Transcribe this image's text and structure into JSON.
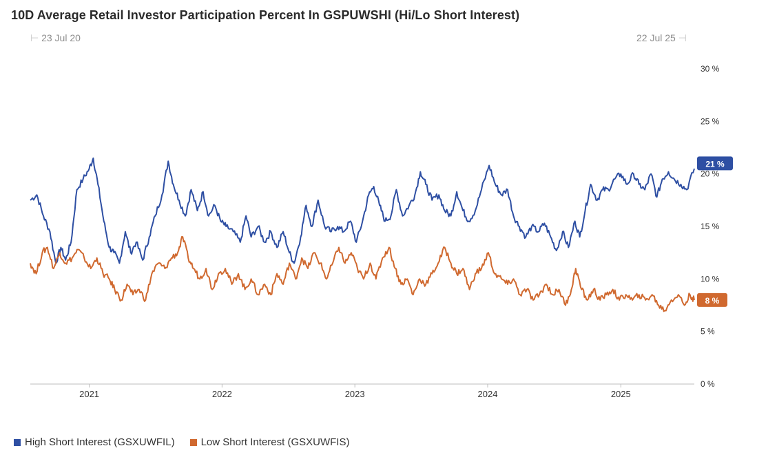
{
  "header": {
    "title": "10D Average Retail Investor Participation Percent In GSPUWSHI (Hi/Lo Short Interest)",
    "range_start": "23 Jul 20",
    "range_end": "22 Jul 25"
  },
  "colors": {
    "high": "#2e4fa3",
    "low": "#d0692f",
    "axis": "#bdbdbd",
    "text": "#333333"
  },
  "chart_data": {
    "type": "line",
    "title": "10D Average Retail Investor Participation Percent In GSPUWSHI (Hi/Lo Short Interest)",
    "x_range": [
      "2020-07-23",
      "2025-07-22"
    ],
    "ylim": [
      0,
      30
    ],
    "y_ticks": [
      0,
      5,
      10,
      15,
      20,
      25,
      30
    ],
    "y_tick_labels": [
      "0 %",
      "5 %",
      "10 %",
      "15 %",
      "20 %",
      "25 %",
      "30 %"
    ],
    "x_ticks": [
      "2021",
      "2022",
      "2023",
      "2024",
      "2025"
    ],
    "grid": false,
    "legend": "bottom-left",
    "series": [
      {
        "name": "High Short Interest (GSXUWFIL)",
        "last_value_label": "21 %",
        "points": [
          [
            "2020-07-23",
            17.5
          ],
          [
            "2020-08-10",
            18.0
          ],
          [
            "2020-08-28",
            16.0
          ],
          [
            "2020-09-15",
            14.5
          ],
          [
            "2020-10-01",
            11.5
          ],
          [
            "2020-10-15",
            13.0
          ],
          [
            "2020-10-28",
            11.8
          ],
          [
            "2020-11-12",
            13.5
          ],
          [
            "2020-11-28",
            18.5
          ],
          [
            "2020-12-15",
            19.5
          ],
          [
            "2021-01-01",
            20.5
          ],
          [
            "2021-01-12",
            21.5
          ],
          [
            "2021-01-25",
            19.0
          ],
          [
            "2021-02-10",
            15.5
          ],
          [
            "2021-02-25",
            13.0
          ],
          [
            "2021-03-10",
            12.5
          ],
          [
            "2021-03-25",
            11.5
          ],
          [
            "2021-04-10",
            14.5
          ],
          [
            "2021-04-25",
            12.5
          ],
          [
            "2021-05-10",
            13.5
          ],
          [
            "2021-05-28",
            11.8
          ],
          [
            "2021-06-15",
            14.0
          ],
          [
            "2021-07-01",
            16.0
          ],
          [
            "2021-07-20",
            18.0
          ],
          [
            "2021-08-06",
            21.2
          ],
          [
            "2021-08-20",
            19.0
          ],
          [
            "2021-09-05",
            17.5
          ],
          [
            "2021-09-22",
            16.0
          ],
          [
            "2021-10-08",
            18.5
          ],
          [
            "2021-10-25",
            16.5
          ],
          [
            "2021-11-10",
            18.3
          ],
          [
            "2021-11-25",
            16.0
          ],
          [
            "2021-12-12",
            17.0
          ],
          [
            "2021-12-28",
            15.5
          ],
          [
            "2022-01-12",
            15.0
          ],
          [
            "2022-02-01",
            14.5
          ],
          [
            "2022-02-20",
            13.5
          ],
          [
            "2022-03-08",
            16.0
          ],
          [
            "2022-03-22",
            14.0
          ],
          [
            "2022-04-10",
            15.0
          ],
          [
            "2022-04-28",
            13.5
          ],
          [
            "2022-05-15",
            14.5
          ],
          [
            "2022-06-01",
            13.0
          ],
          [
            "2022-06-18",
            14.5
          ],
          [
            "2022-07-05",
            12.5
          ],
          [
            "2022-07-18",
            11.5
          ],
          [
            "2022-08-05",
            14.0
          ],
          [
            "2022-08-20",
            17.0
          ],
          [
            "2022-09-05",
            15.0
          ],
          [
            "2022-09-22",
            17.5
          ],
          [
            "2022-10-10",
            15.0
          ],
          [
            "2022-10-28",
            14.5
          ],
          [
            "2022-11-15",
            15.0
          ],
          [
            "2022-12-01",
            14.5
          ],
          [
            "2022-12-20",
            15.5
          ],
          [
            "2023-01-05",
            13.5
          ],
          [
            "2023-01-22",
            15.5
          ],
          [
            "2023-02-08",
            18.0
          ],
          [
            "2023-02-22",
            18.8
          ],
          [
            "2023-03-10",
            17.0
          ],
          [
            "2023-03-25",
            15.5
          ],
          [
            "2023-04-10",
            16.0
          ],
          [
            "2023-04-25",
            18.5
          ],
          [
            "2023-05-12",
            16.0
          ],
          [
            "2023-05-30",
            17.0
          ],
          [
            "2023-06-15",
            18.0
          ],
          [
            "2023-06-30",
            20.2
          ],
          [
            "2023-07-15",
            19.0
          ],
          [
            "2023-08-01",
            17.5
          ],
          [
            "2023-08-20",
            18.0
          ],
          [
            "2023-09-05",
            16.5
          ],
          [
            "2023-09-22",
            16.0
          ],
          [
            "2023-10-08",
            18.3
          ],
          [
            "2023-10-25",
            16.5
          ],
          [
            "2023-11-10",
            15.5
          ],
          [
            "2023-11-28",
            16.5
          ],
          [
            "2023-12-15",
            18.5
          ],
          [
            "2024-01-05",
            20.8
          ],
          [
            "2024-01-22",
            19.0
          ],
          [
            "2024-02-08",
            18.0
          ],
          [
            "2024-02-25",
            18.5
          ],
          [
            "2024-03-12",
            16.0
          ],
          [
            "2024-03-28",
            15.0
          ],
          [
            "2024-04-15",
            14.0
          ],
          [
            "2024-05-01",
            15.0
          ],
          [
            "2024-05-20",
            14.5
          ],
          [
            "2024-06-05",
            15.3
          ],
          [
            "2024-06-22",
            14.0
          ],
          [
            "2024-07-08",
            12.7
          ],
          [
            "2024-07-25",
            14.5
          ],
          [
            "2024-08-10",
            13.0
          ],
          [
            "2024-08-28",
            15.5
          ],
          [
            "2024-09-10",
            14.0
          ],
          [
            "2024-09-25",
            16.5
          ],
          [
            "2024-10-10",
            19.0
          ],
          [
            "2024-10-28",
            17.5
          ],
          [
            "2024-11-12",
            18.5
          ],
          [
            "2024-11-28",
            18.5
          ],
          [
            "2024-12-15",
            19.5
          ],
          [
            "2025-01-01",
            20.0
          ],
          [
            "2025-01-18",
            19.0
          ],
          [
            "2025-02-05",
            20.0
          ],
          [
            "2025-02-20",
            19.0
          ],
          [
            "2025-03-08",
            18.5
          ],
          [
            "2025-03-25",
            20.0
          ],
          [
            "2025-04-10",
            17.8
          ],
          [
            "2025-04-25",
            19.5
          ],
          [
            "2025-05-12",
            20.2
          ],
          [
            "2025-05-28",
            19.5
          ],
          [
            "2025-06-15",
            19.0
          ],
          [
            "2025-07-01",
            18.5
          ],
          [
            "2025-07-22",
            20.5
          ]
        ]
      },
      {
        "name": "Low Short Interest (GSXUWFIS)",
        "last_value_label": "8 %",
        "points": [
          [
            "2020-07-23",
            11.5
          ],
          [
            "2020-08-08",
            10.5
          ],
          [
            "2020-08-25",
            12.5
          ],
          [
            "2020-09-08",
            13.0
          ],
          [
            "2020-09-25",
            11.0
          ],
          [
            "2020-10-12",
            12.5
          ],
          [
            "2020-10-28",
            11.5
          ],
          [
            "2020-11-15",
            12.0
          ],
          [
            "2020-12-01",
            12.8
          ],
          [
            "2020-12-18",
            12.0
          ],
          [
            "2021-01-05",
            11.0
          ],
          [
            "2021-01-22",
            12.0
          ],
          [
            "2021-02-08",
            10.5
          ],
          [
            "2021-02-25",
            10.0
          ],
          [
            "2021-03-12",
            9.0
          ],
          [
            "2021-03-30",
            8.0
          ],
          [
            "2021-04-15",
            9.5
          ],
          [
            "2021-05-01",
            8.5
          ],
          [
            "2021-05-18",
            9.0
          ],
          [
            "2021-06-05",
            8.0
          ],
          [
            "2021-06-22",
            10.5
          ],
          [
            "2021-07-10",
            11.5
          ],
          [
            "2021-07-28",
            11.0
          ],
          [
            "2021-08-15",
            12.0
          ],
          [
            "2021-09-01",
            12.5
          ],
          [
            "2021-09-15",
            14.0
          ],
          [
            "2021-09-30",
            12.0
          ],
          [
            "2021-10-15",
            11.0
          ],
          [
            "2021-11-01",
            10.0
          ],
          [
            "2021-11-18",
            11.0
          ],
          [
            "2021-12-05",
            9.0
          ],
          [
            "2021-12-22",
            10.5
          ],
          [
            "2022-01-10",
            11.0
          ],
          [
            "2022-01-28",
            9.5
          ],
          [
            "2022-02-15",
            10.5
          ],
          [
            "2022-03-05",
            9.0
          ],
          [
            "2022-03-22",
            10.0
          ],
          [
            "2022-04-10",
            8.5
          ],
          [
            "2022-04-28",
            9.5
          ],
          [
            "2022-05-15",
            8.5
          ],
          [
            "2022-06-01",
            10.5
          ],
          [
            "2022-06-18",
            9.5
          ],
          [
            "2022-07-05",
            11.5
          ],
          [
            "2022-07-22",
            10.0
          ],
          [
            "2022-08-08",
            12.0
          ],
          [
            "2022-08-25",
            11.0
          ],
          [
            "2022-09-10",
            12.5
          ],
          [
            "2022-09-28",
            11.5
          ],
          [
            "2022-10-15",
            10.0
          ],
          [
            "2022-11-01",
            11.5
          ],
          [
            "2022-11-18",
            13.0
          ],
          [
            "2022-12-05",
            11.5
          ],
          [
            "2022-12-22",
            12.5
          ],
          [
            "2023-01-08",
            11.0
          ],
          [
            "2023-01-25",
            10.0
          ],
          [
            "2023-02-12",
            11.5
          ],
          [
            "2023-02-28",
            10.0
          ],
          [
            "2023-03-18",
            12.0
          ],
          [
            "2023-04-05",
            13.0
          ],
          [
            "2023-04-22",
            11.0
          ],
          [
            "2023-05-08",
            9.5
          ],
          [
            "2023-05-25",
            10.0
          ],
          [
            "2023-06-10",
            8.5
          ],
          [
            "2023-06-28",
            10.0
          ],
          [
            "2023-07-15",
            9.5
          ],
          [
            "2023-08-01",
            10.5
          ],
          [
            "2023-08-18",
            11.5
          ],
          [
            "2023-09-05",
            13.0
          ],
          [
            "2023-09-22",
            11.5
          ],
          [
            "2023-10-08",
            10.5
          ],
          [
            "2023-10-25",
            11.0
          ],
          [
            "2023-11-12",
            9.0
          ],
          [
            "2023-11-28",
            10.5
          ],
          [
            "2023-12-15",
            11.0
          ],
          [
            "2024-01-03",
            12.5
          ],
          [
            "2024-01-20",
            10.5
          ],
          [
            "2024-02-08",
            10.0
          ],
          [
            "2024-02-25",
            9.5
          ],
          [
            "2024-03-12",
            10.0
          ],
          [
            "2024-03-30",
            8.5
          ],
          [
            "2024-04-18",
            9.0
          ],
          [
            "2024-05-05",
            8.0
          ],
          [
            "2024-05-22",
            8.5
          ],
          [
            "2024-06-10",
            9.5
          ],
          [
            "2024-06-28",
            8.5
          ],
          [
            "2024-07-15",
            9.0
          ],
          [
            "2024-08-02",
            7.5
          ],
          [
            "2024-08-18",
            9.0
          ],
          [
            "2024-08-30",
            11.0
          ],
          [
            "2024-09-15",
            9.0
          ],
          [
            "2024-10-01",
            8.0
          ],
          [
            "2024-10-18",
            9.0
          ],
          [
            "2024-11-05",
            8.0
          ],
          [
            "2024-11-22",
            8.5
          ],
          [
            "2024-12-10",
            9.0
          ],
          [
            "2024-12-28",
            8.0
          ],
          [
            "2025-01-15",
            8.5
          ],
          [
            "2025-02-02",
            8.0
          ],
          [
            "2025-02-20",
            8.5
          ],
          [
            "2025-03-10",
            8.0
          ],
          [
            "2025-03-28",
            8.5
          ],
          [
            "2025-04-15",
            7.5
          ],
          [
            "2025-05-02",
            7.0
          ],
          [
            "2025-05-20",
            8.0
          ],
          [
            "2025-06-08",
            8.5
          ],
          [
            "2025-06-25",
            7.5
          ],
          [
            "2025-07-10",
            8.5
          ],
          [
            "2025-07-22",
            8.0
          ]
        ]
      }
    ]
  }
}
